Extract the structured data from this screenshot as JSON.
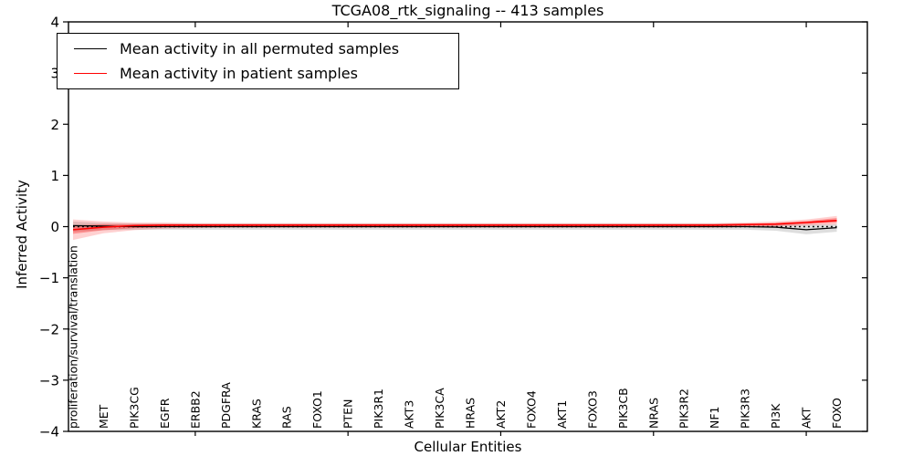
{
  "chart_data": {
    "type": "line",
    "title": "TCGA08_rtk_signaling -- 413 samples",
    "xlabel": "Cellular Entities",
    "ylabel": "Inferred Activity",
    "xlim": [
      0.85,
      27
    ],
    "ylim": [
      -4,
      4
    ],
    "grid": false,
    "legend_position": "upper left",
    "yticks": {
      "values": [
        4,
        3,
        2,
        1,
        0,
        -1,
        -2,
        -3,
        -4
      ],
      "labels": [
        "4",
        "3",
        "2",
        "1",
        "0",
        "−1",
        "−2",
        "−3",
        "−4"
      ]
    },
    "xticks": {
      "values": [
        5,
        10,
        15,
        20,
        25
      ],
      "labels": [
        "",
        "",
        "",
        "",
        ""
      ]
    },
    "categories": [
      "proliferation/survival/translation",
      "MET",
      "PIK3CG",
      "EGFR",
      "ERBB2",
      "PDGFRA",
      "KRAS",
      "RAS",
      "FOXO1",
      "PTEN",
      "PIK3R1",
      "AKT3",
      "PIK3CA",
      "HRAS",
      "AKT2",
      "FOXO4",
      "AKT1",
      "FOXO3",
      "PIK3CB",
      "NRAS",
      "PIK3R2",
      "NF1",
      "PIK3R3",
      "PI3K",
      "AKT",
      "FOXO"
    ],
    "category_x_start": 1,
    "series": [
      {
        "name": "Mean activity in all permuted samples",
        "color": "#000000",
        "values": [
          0.02,
          0.01,
          0,
          0,
          0,
          0,
          0,
          0,
          0,
          0,
          0,
          0,
          0,
          0,
          0,
          0,
          0,
          0,
          0,
          0,
          0,
          0,
          0,
          -0.01,
          -0.06,
          -0.02
        ]
      },
      {
        "name": "Mean activity in patient samples",
        "color": "#ff0000",
        "values": [
          -0.06,
          -0.01,
          0.02,
          0.03,
          0.03,
          0.03,
          0.03,
          0.03,
          0.03,
          0.03,
          0.03,
          0.03,
          0.03,
          0.03,
          0.03,
          0.03,
          0.03,
          0.03,
          0.03,
          0.03,
          0.03,
          0.03,
          0.04,
          0.05,
          0.08,
          0.12
        ]
      }
    ],
    "bands": [
      {
        "name": "permuted-std-band",
        "color": "#000000",
        "opacity": 0.13,
        "upper": [
          0.1,
          0.07,
          0.06,
          0.06,
          0.06,
          0.06,
          0.06,
          0.06,
          0.06,
          0.06,
          0.06,
          0.06,
          0.06,
          0.06,
          0.06,
          0.06,
          0.06,
          0.06,
          0.06,
          0.06,
          0.06,
          0.06,
          0.06,
          0.05,
          0.04,
          0.05
        ],
        "lower": [
          -0.1,
          -0.07,
          -0.06,
          -0.06,
          -0.06,
          -0.06,
          -0.06,
          -0.06,
          -0.06,
          -0.06,
          -0.06,
          -0.06,
          -0.06,
          -0.06,
          -0.06,
          -0.06,
          -0.06,
          -0.06,
          -0.06,
          -0.06,
          -0.06,
          -0.06,
          -0.06,
          -0.08,
          -0.15,
          -0.1
        ]
      },
      {
        "name": "patient-std-band-outer",
        "color": "#ff0000",
        "opacity": 0.18,
        "upper": [
          0.14,
          0.1,
          0.08,
          0.08,
          0.07,
          0.07,
          0.07,
          0.07,
          0.07,
          0.07,
          0.07,
          0.07,
          0.07,
          0.07,
          0.07,
          0.07,
          0.07,
          0.07,
          0.07,
          0.07,
          0.07,
          0.07,
          0.08,
          0.1,
          0.14,
          0.21
        ],
        "lower": [
          -0.26,
          -0.13,
          -0.07,
          -0.04,
          -0.03,
          -0.02,
          -0.02,
          -0.02,
          -0.02,
          -0.02,
          -0.02,
          -0.02,
          -0.02,
          -0.02,
          -0.02,
          -0.02,
          -0.02,
          -0.02,
          -0.02,
          -0.02,
          -0.02,
          -0.02,
          -0.01,
          0.0,
          0.02,
          0.04
        ]
      },
      {
        "name": "patient-std-band-inner",
        "color": "#ff0000",
        "opacity": 0.3,
        "upper": [
          0.02,
          0.05,
          0.05,
          0.05,
          0.05,
          0.05,
          0.05,
          0.05,
          0.05,
          0.05,
          0.05,
          0.05,
          0.05,
          0.05,
          0.05,
          0.05,
          0.05,
          0.05,
          0.05,
          0.05,
          0.05,
          0.05,
          0.06,
          0.07,
          0.11,
          0.17
        ],
        "lower": [
          -0.14,
          -0.07,
          -0.03,
          -0.01,
          0.0,
          0.0,
          0.0,
          0.0,
          0.0,
          0.0,
          0.0,
          0.0,
          0.0,
          0.0,
          0.0,
          0.0,
          0.0,
          0.0,
          0.0,
          0.0,
          0.0,
          0.0,
          0.01,
          0.02,
          0.05,
          0.08
        ]
      }
    ],
    "reference_line": {
      "value": 0,
      "style": "dotted",
      "color": "#000000"
    }
  },
  "legend": {
    "entries": [
      {
        "label": "Mean activity in all permuted samples",
        "color": "#000000"
      },
      {
        "label": "Mean activity in patient samples",
        "color": "#ff0000"
      }
    ]
  }
}
